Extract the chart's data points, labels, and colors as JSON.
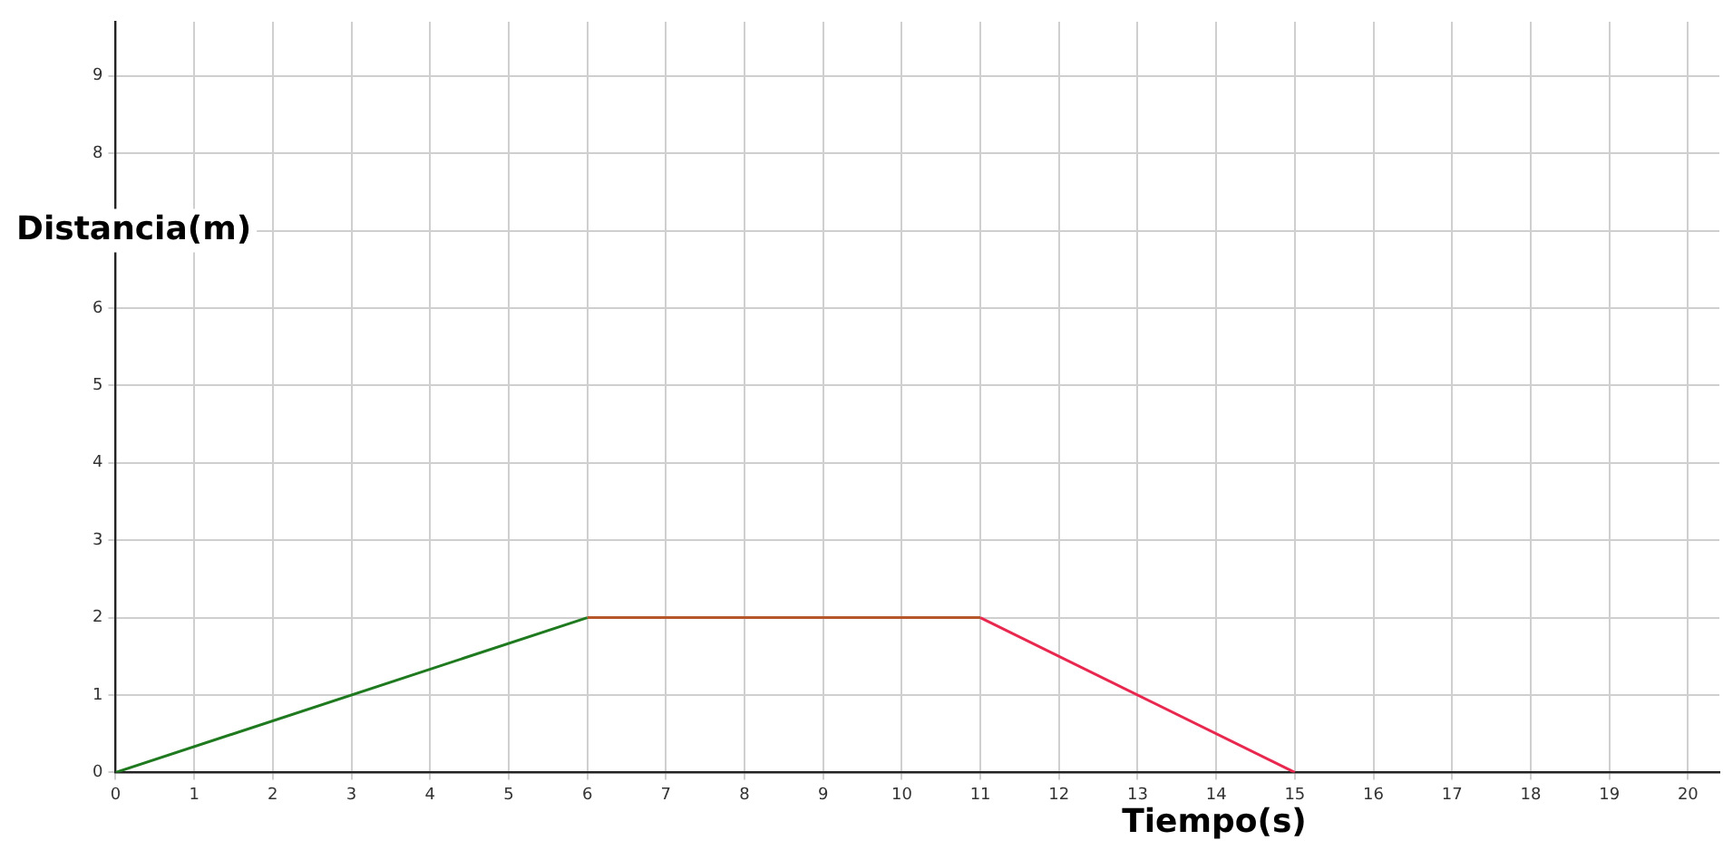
{
  "chart_data": {
    "type": "line",
    "xlabel": "Tiempo(s)",
    "ylabel": "Distancia(m)",
    "series": [
      {
        "color": "#1f7a1f",
        "x": [
          0,
          6
        ],
        "values": [
          0,
          2
        ]
      },
      {
        "color": "#b5562b",
        "x": [
          6,
          11
        ],
        "values": [
          2,
          2
        ]
      },
      {
        "color": "#e8284f",
        "x": [
          11,
          15
        ],
        "values": [
          2,
          0
        ]
      }
    ],
    "xlim": [
      0,
      20.4
    ],
    "xticks": [
      0,
      1,
      2,
      3,
      4,
      5,
      6,
      7,
      8,
      9,
      10,
      11,
      12,
      13,
      14,
      15,
      16,
      17,
      18,
      19,
      20
    ],
    "ylim": [
      0,
      9.7
    ],
    "yticks": [
      0,
      1,
      2,
      3,
      4,
      5,
      6,
      {
        "value": 7,
        "label": null
      },
      8,
      9
    ],
    "grid": true,
    "legend": false,
    "marker": "none",
    "line_style": "solid"
  }
}
